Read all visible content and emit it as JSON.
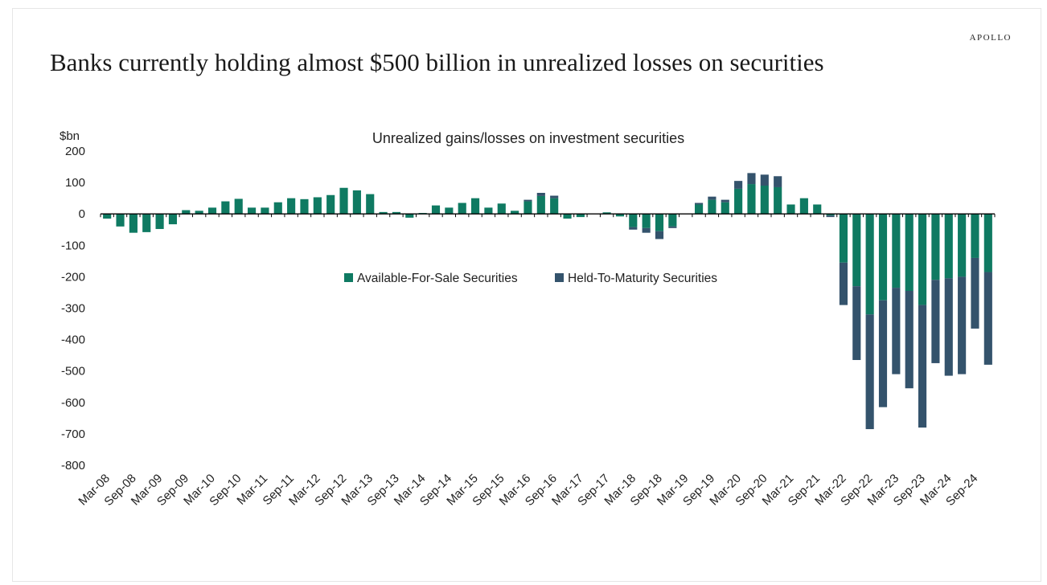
{
  "brand": "APOLLO",
  "headline": "Banks currently holding almost $500 billion in unrealized losses on securities",
  "colors": {
    "afs": "#0f7a62",
    "htm": "#34536c",
    "axis": "#000000"
  },
  "chart_data": {
    "type": "bar",
    "stacked": true,
    "title": "Unrealized gains/losses on investment securities",
    "ylabel": "$bn",
    "ylim": [
      -800,
      200
    ],
    "yticks": [
      "200",
      "100",
      "0",
      "-100",
      "-200",
      "-300",
      "-400",
      "-500",
      "-600",
      "-700",
      "-800"
    ],
    "ytick_values": [
      200,
      100,
      0,
      -100,
      -200,
      -300,
      -400,
      -500,
      -600,
      -700,
      -800
    ],
    "xtick_labels": [
      "Mar-08",
      "Sep-08",
      "Mar-09",
      "Sep-09",
      "Mar-10",
      "Sep-10",
      "Mar-11",
      "Sep-11",
      "Mar-12",
      "Sep-12",
      "Mar-13",
      "Sep-13",
      "Mar-14",
      "Sep-14",
      "Mar-15",
      "Sep-15",
      "Mar-16",
      "Sep-16",
      "Mar-17",
      "Sep-17",
      "Mar-18",
      "Sep-18",
      "Mar-19",
      "Sep-19",
      "Mar-20",
      "Sep-20",
      "Mar-21",
      "Sep-21",
      "Mar-22",
      "Sep-22",
      "Mar-23",
      "Sep-23",
      "Mar-24",
      "Sep-24"
    ],
    "legend_position": "center",
    "categories": [
      "2008Q1",
      "2008Q2",
      "2008Q3",
      "2008Q4",
      "2009Q1",
      "2009Q2",
      "2009Q3",
      "2009Q4",
      "2010Q1",
      "2010Q2",
      "2010Q3",
      "2010Q4",
      "2011Q1",
      "2011Q2",
      "2011Q3",
      "2011Q4",
      "2012Q1",
      "2012Q2",
      "2012Q3",
      "2012Q4",
      "2013Q1",
      "2013Q2",
      "2013Q3",
      "2013Q4",
      "2014Q1",
      "2014Q2",
      "2014Q3",
      "2014Q4",
      "2015Q1",
      "2015Q2",
      "2015Q3",
      "2015Q4",
      "2016Q1",
      "2016Q2",
      "2016Q3",
      "2016Q4",
      "2017Q1",
      "2017Q2",
      "2017Q3",
      "2017Q4",
      "2018Q1",
      "2018Q2",
      "2018Q3",
      "2018Q4",
      "2019Q1",
      "2019Q2",
      "2019Q3",
      "2019Q4",
      "2020Q1",
      "2020Q2",
      "2020Q3",
      "2020Q4",
      "2021Q1",
      "2021Q2",
      "2021Q3",
      "2021Q4",
      "2022Q1",
      "2022Q2",
      "2022Q3",
      "2022Q4",
      "2023Q1",
      "2023Q2",
      "2023Q3",
      "2023Q4",
      "2024Q1",
      "2024Q2",
      "2024Q3",
      "2024Q4"
    ],
    "series": [
      {
        "name": "Available-For-Sale Securities",
        "values": [
          -15,
          -40,
          -60,
          -58,
          -48,
          -33,
          12,
          10,
          20,
          40,
          48,
          20,
          20,
          37,
          50,
          47,
          53,
          60,
          83,
          75,
          63,
          6,
          6,
          -12,
          3,
          27,
          20,
          35,
          50,
          20,
          33,
          10,
          40,
          57,
          50,
          -15,
          -10,
          0,
          5,
          -8,
          -42,
          -45,
          -55,
          -40,
          0,
          30,
          45,
          37,
          80,
          95,
          90,
          85,
          30,
          50,
          30,
          -5,
          -155,
          -230,
          -320,
          -275,
          -235,
          -245,
          -290,
          -210,
          -205,
          -200,
          -140,
          -185
        ]
      },
      {
        "name": "Held-To-Maturity Securities",
        "values": [
          0,
          0,
          0,
          0,
          0,
          0,
          0,
          0,
          0,
          0,
          0,
          0,
          0,
          0,
          0,
          0,
          0,
          0,
          0,
          0,
          0,
          0,
          0,
          0,
          0,
          0,
          0,
          0,
          0,
          0,
          0,
          0,
          5,
          10,
          8,
          0,
          0,
          0,
          0,
          0,
          -8,
          -15,
          -25,
          -5,
          0,
          5,
          10,
          8,
          25,
          35,
          35,
          35,
          0,
          0,
          0,
          -5,
          -135,
          -235,
          -365,
          -340,
          -275,
          -310,
          -390,
          -265,
          -310,
          -310,
          -225,
          -295
        ]
      }
    ]
  }
}
